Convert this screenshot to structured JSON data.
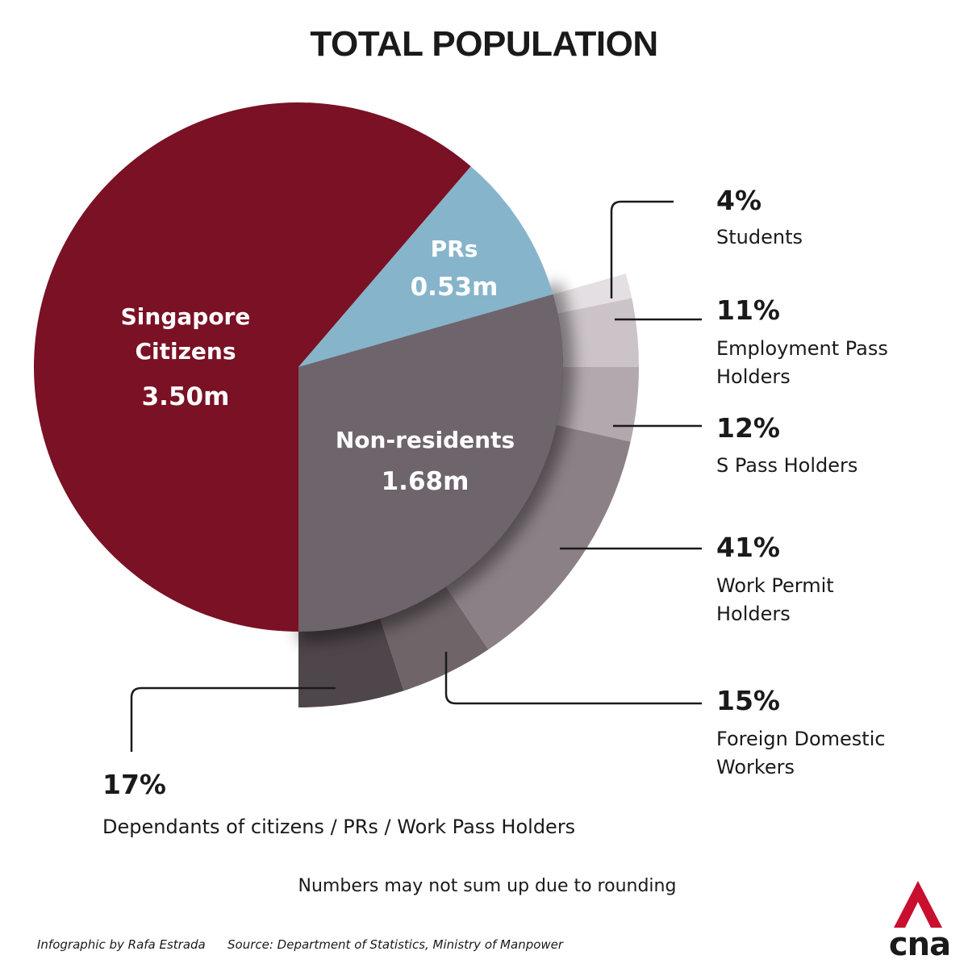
{
  "title": "TOTAL POPULATION",
  "note": "Numbers may not sum up due to rounding",
  "credit": "Infographic by Rafa Estrada",
  "source": "Source: Department of Statistics, Ministry of Manpower",
  "logo": {
    "text": "cna",
    "icon": "cna-logo",
    "colors": [
      "#c8102e",
      "#1a1a1a"
    ]
  },
  "chart_data": {
    "type": "pie",
    "title": "TOTAL POPULATION",
    "unit": "m",
    "slices": [
      {
        "label": "Singapore Citizens",
        "label_lines": [
          "Singapore",
          "Citizens"
        ],
        "value": 3.5,
        "value_text": "3.50m",
        "color": "#7a1124"
      },
      {
        "label": "PRs",
        "label_lines": [
          "PRs"
        ],
        "value": 0.53,
        "value_text": "0.53m",
        "color": "#86b4cb"
      },
      {
        "label": "Non-residents",
        "label_lines": [
          "Non-residents"
        ],
        "value": 1.68,
        "value_text": "1.68m",
        "color": "#6e646b"
      }
    ],
    "breakdown": {
      "of": "Non-residents",
      "segments": [
        {
          "label": "Students",
          "label_lines": [
            "Students"
          ],
          "percent": 4,
          "percent_text": "4%",
          "color": "#e4dfe2"
        },
        {
          "label": "Employment Pass Holders",
          "label_lines": [
            "Employment Pass",
            "Holders"
          ],
          "percent": 11,
          "percent_text": "11%",
          "color": "#cbc3c8"
        },
        {
          "label": "S Pass Holders",
          "label_lines": [
            "S Pass Holders"
          ],
          "percent": 12,
          "percent_text": "12%",
          "color": "#b3a8ae"
        },
        {
          "label": "Work Permit Holders",
          "label_lines": [
            "Work Permit",
            "Holders"
          ],
          "percent": 41,
          "percent_text": "41%",
          "color": "#8b8086"
        },
        {
          "label": "Foreign Domestic Workers",
          "label_lines": [
            "Foreign Domestic",
            "Workers"
          ],
          "percent": 15,
          "percent_text": "15%",
          "color": "#6f6569"
        },
        {
          "label": "Dependants of citizens / PRs / Work Pass Holders",
          "label_lines": [
            "Dependants of citizens / PRs / Work Pass Holders"
          ],
          "percent": 17,
          "percent_text": "17%",
          "color": "#4f464b"
        }
      ]
    }
  }
}
